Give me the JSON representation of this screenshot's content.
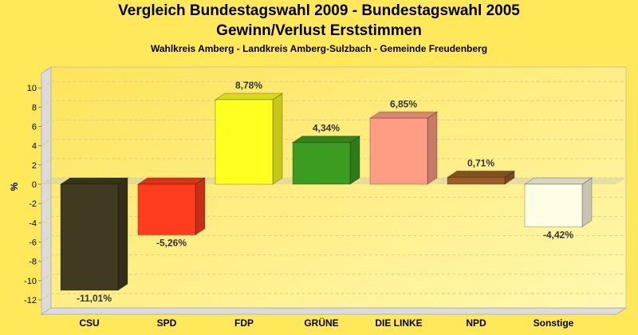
{
  "chart_data": {
    "type": "bar",
    "title": "Vergleich Bundestagswahl 2009 - Bundestagswahl 2005",
    "subtitle": "Gewinn/Verlust Erststimmen",
    "subsubtitle": "Wahlkreis Amberg - Landkreis Amberg-Sulzbach - Gemeinde Freudenberg",
    "xlabel": "",
    "ylabel": "%",
    "ylim": [
      -13.5,
      11.5
    ],
    "yticks": [
      10,
      8,
      6,
      4,
      2,
      0,
      -2,
      -4,
      -6,
      -8,
      -10,
      -12
    ],
    "grid": true,
    "style": "3d",
    "categories": [
      "CSU",
      "SPD",
      "FDP",
      "GRÜNE",
      "DIE LINKE",
      "NPD",
      "Sonstige"
    ],
    "values": [
      -11.01,
      -5.26,
      8.78,
      4.34,
      6.85,
      0.71,
      -4.42
    ],
    "labels": [
      "-11,01%",
      "-5,26%",
      "8,78%",
      "4,34%",
      "6,85%",
      "0,71%",
      "-4,42%"
    ],
    "colors": [
      "#3f3b20",
      "#ff3c1e",
      "#ffff20",
      "#3c9c20",
      "#ff9c84",
      "#9a5e26",
      "#fffde6"
    ]
  }
}
